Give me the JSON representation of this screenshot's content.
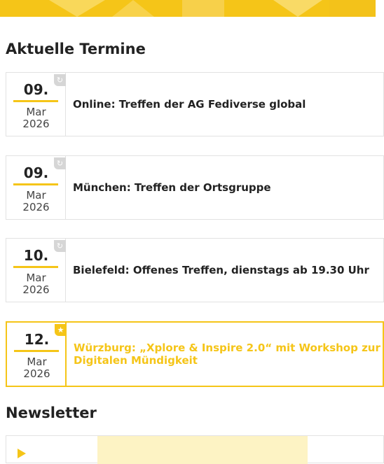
{
  "termine": {
    "heading": "Aktuelle Termine",
    "events": [
      {
        "day": "09.",
        "month": "Mar",
        "year": "2026",
        "title": "Online: Treffen der AG Fediverse global",
        "badge_icon": "recurring-icon",
        "highlight": false
      },
      {
        "day": "09.",
        "month": "Mar",
        "year": "2026",
        "title": "München: Treffen der Ortsgruppe",
        "badge_icon": "recurring-icon",
        "highlight": false
      },
      {
        "day": "10.",
        "month": "Mar",
        "year": "2026",
        "title": "Bielefeld: Offenes Treffen, dienstags ab 19.30 Uhr",
        "badge_icon": "recurring-icon",
        "highlight": false
      },
      {
        "day": "12.",
        "month": "Mar",
        "year": "2026",
        "title": "Würzburg: „Xplore & Inspire 2.0“ mit Workshop zur Digitalen Mündigkeit",
        "badge_icon": "star-icon",
        "highlight": true
      }
    ]
  },
  "newsletter": {
    "heading": "Newsletter"
  },
  "colors": {
    "accent": "#f5c518",
    "badge_grey": "#d6d6d6",
    "border": "#e2e2e2"
  },
  "icons": {
    "recurring": "↻",
    "star": "★"
  }
}
